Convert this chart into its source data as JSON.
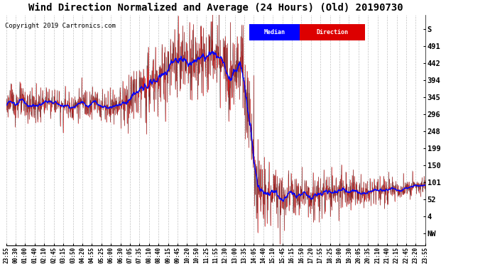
{
  "title": "Wind Direction Normalized and Average (24 Hours) (Old) 20190730",
  "copyright": "Copyright 2019 Cartronics.com",
  "legend_median": "Median",
  "legend_direction": "Direction",
  "y_tick_values": [
    540,
    491,
    442,
    394,
    345,
    296,
    248,
    199,
    150,
    101,
    52,
    4,
    -45
  ],
  "y_tick_labels": [
    "S",
    "491",
    "442",
    "394",
    "345",
    "296",
    "248",
    "199",
    "150",
    "101",
    "52",
    "4",
    "NW"
  ],
  "ylim": [
    -80,
    580
  ],
  "background_color": "#ffffff",
  "grid_color": "#aaaaaa",
  "median_color": "#0000ff",
  "direction_color": "#dd0000",
  "dark_line_color": "#222222",
  "title_fontsize": 10,
  "copyright_fontsize": 6.5,
  "tick_fontsize": 7.5,
  "legend_fontsize": 7,
  "x_labels": [
    "23:55",
    "00:30",
    "01:00",
    "01:40",
    "02:10",
    "02:45",
    "03:15",
    "03:50",
    "04:20",
    "04:55",
    "05:25",
    "06:00",
    "06:30",
    "07:05",
    "07:35",
    "08:10",
    "08:40",
    "09:15",
    "09:45",
    "10:20",
    "10:50",
    "11:25",
    "11:55",
    "12:30",
    "13:00",
    "13:35",
    "14:05",
    "14:40",
    "15:10",
    "15:45",
    "16:15",
    "16:50",
    "17:20",
    "17:55",
    "18:25",
    "19:00",
    "19:30",
    "20:05",
    "20:35",
    "21:10",
    "21:40",
    "22:15",
    "22:45",
    "23:20",
    "23:55"
  ]
}
